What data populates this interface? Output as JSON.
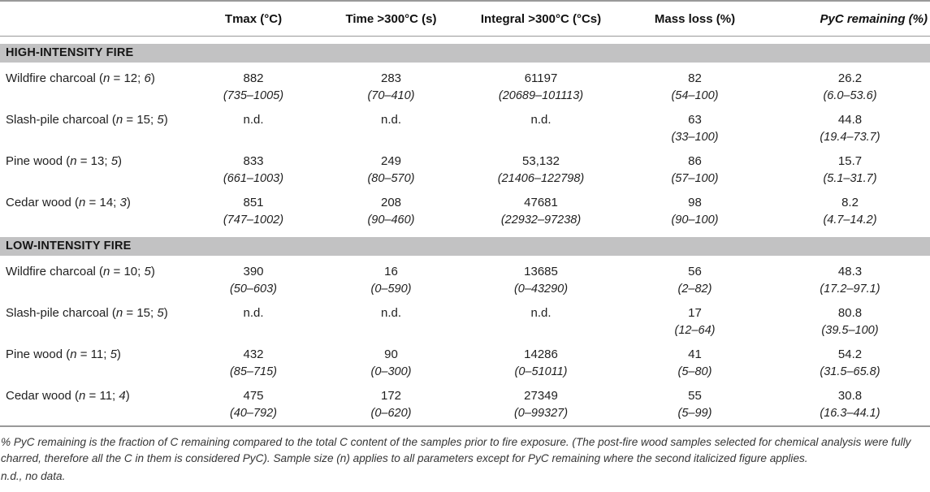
{
  "colors": {
    "section_band": "#c2c2c3",
    "rule": "#999999",
    "text": "#1f1f1f"
  },
  "table": {
    "columns": [
      "",
      "Tmax (°C)",
      "Time >300°C (s)",
      "Integral >300°C (°Cs)",
      "Mass loss (%)",
      "PyC remaining (%)"
    ],
    "sections": [
      {
        "title": "HIGH-INTENSITY FIRE",
        "rows": [
          {
            "label_parts": [
              {
                "t": "Wildfire charcoal ("
              },
              {
                "t": "n",
                "i": true
              },
              {
                "t": " = 12; "
              },
              {
                "t": "6",
                "i": true
              },
              {
                "t": ")"
              }
            ],
            "cells": [
              {
                "value": "882",
                "range": "(735–1005)"
              },
              {
                "value": "283",
                "range": "(70–410)"
              },
              {
                "value": "61197",
                "range": "(20689–101113)"
              },
              {
                "value": "82",
                "range": "(54–100)"
              },
              {
                "value": "26.2",
                "range": "(6.0–53.6)"
              }
            ]
          },
          {
            "label_parts": [
              {
                "t": "Slash-pile charcoal ("
              },
              {
                "t": "n",
                "i": true
              },
              {
                "t": " = 15; "
              },
              {
                "t": "5",
                "i": true
              },
              {
                "t": ")"
              }
            ],
            "cells": [
              {
                "value": "n.d.",
                "range": ""
              },
              {
                "value": "n.d.",
                "range": ""
              },
              {
                "value": "n.d.",
                "range": ""
              },
              {
                "value": "63",
                "range": "(33–100)"
              },
              {
                "value": "44.8",
                "range": "(19.4–73.7)"
              }
            ]
          },
          {
            "label_parts": [
              {
                "t": "Pine wood ("
              },
              {
                "t": "n",
                "i": true
              },
              {
                "t": " = 13; "
              },
              {
                "t": "5",
                "i": true
              },
              {
                "t": ")"
              }
            ],
            "cells": [
              {
                "value": "833",
                "range": "(661–1003)"
              },
              {
                "value": "249",
                "range": "(80–570)"
              },
              {
                "value": "53,132",
                "range": "(21406–122798)"
              },
              {
                "value": "86",
                "range": "(57–100)"
              },
              {
                "value": "15.7",
                "range": "(5.1–31.7)"
              }
            ]
          },
          {
            "label_parts": [
              {
                "t": "Cedar wood ("
              },
              {
                "t": "n",
                "i": true
              },
              {
                "t": " = 14; "
              },
              {
                "t": "3",
                "i": true
              },
              {
                "t": ")"
              }
            ],
            "cells": [
              {
                "value": "851",
                "range": "(747–1002)"
              },
              {
                "value": "208",
                "range": "(90–460)"
              },
              {
                "value": "47681",
                "range": "(22932–97238)"
              },
              {
                "value": "98",
                "range": "(90–100)"
              },
              {
                "value": "8.2",
                "range": "(4.7–14.2)"
              }
            ]
          }
        ]
      },
      {
        "title": "LOW-INTENSITY FIRE",
        "rows": [
          {
            "label_parts": [
              {
                "t": "Wildfire charcoal ("
              },
              {
                "t": "n",
                "i": true
              },
              {
                "t": " = 10; "
              },
              {
                "t": "5",
                "i": true
              },
              {
                "t": ")"
              }
            ],
            "cells": [
              {
                "value": "390",
                "range": "(50–603)"
              },
              {
                "value": "16",
                "range": "(0–590)"
              },
              {
                "value": "13685",
                "range": "(0–43290)"
              },
              {
                "value": "56",
                "range": "(2–82)"
              },
              {
                "value": "48.3",
                "range": "(17.2–97.1)"
              }
            ]
          },
          {
            "label_parts": [
              {
                "t": "Slash-pile charcoal ("
              },
              {
                "t": "n",
                "i": true
              },
              {
                "t": " = 15; "
              },
              {
                "t": "5",
                "i": true
              },
              {
                "t": ")"
              }
            ],
            "cells": [
              {
                "value": "n.d.",
                "range": ""
              },
              {
                "value": "n.d.",
                "range": ""
              },
              {
                "value": "n.d.",
                "range": ""
              },
              {
                "value": "17",
                "range": "(12–64)"
              },
              {
                "value": "80.8",
                "range": "(39.5–100)"
              }
            ]
          },
          {
            "label_parts": [
              {
                "t": "Pine wood ("
              },
              {
                "t": "n",
                "i": true
              },
              {
                "t": " = 11; "
              },
              {
                "t": "5",
                "i": true
              },
              {
                "t": ")"
              }
            ],
            "cells": [
              {
                "value": "432",
                "range": "(85–715)"
              },
              {
                "value": "90",
                "range": "(0–300)"
              },
              {
                "value": "14286",
                "range": "(0–51011)"
              },
              {
                "value": "41",
                "range": "(5–80)"
              },
              {
                "value": "54.2",
                "range": "(31.5–65.8)"
              }
            ]
          },
          {
            "label_parts": [
              {
                "t": "Cedar wood ("
              },
              {
                "t": "n",
                "i": true
              },
              {
                "t": " = 11; "
              },
              {
                "t": "4",
                "i": true
              },
              {
                "t": ")"
              }
            ],
            "cells": [
              {
                "value": "475",
                "range": "(40–792)"
              },
              {
                "value": "172",
                "range": "(0–620)"
              },
              {
                "value": "27349",
                "range": "(0–99327)"
              },
              {
                "value": "55",
                "range": "(5–99)"
              },
              {
                "value": "30.8",
                "range": "(16.3–44.1)"
              }
            ]
          }
        ]
      }
    ]
  },
  "footnotes": [
    "% PyC remaining is the fraction of C remaining compared to the total C content of the samples prior to fire exposure. (The post-fire wood samples selected for chemical analysis were fully charred, therefore all the C in them is considered PyC). Sample size (n) applies to all parameters except for PyC remaining where the second italicized figure applies.",
    "n.d., no data."
  ]
}
